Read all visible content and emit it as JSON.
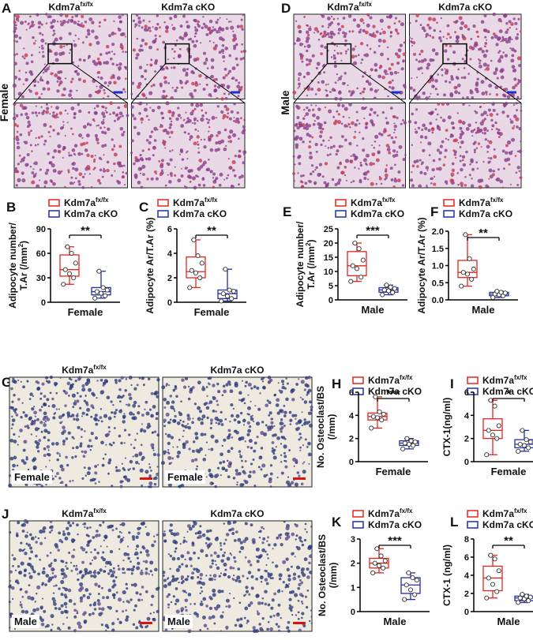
{
  "image_panels": [
    {
      "letter": "A",
      "columns": [
        {
          "name": "Kdm7a",
          "sup": "fx/fx"
        },
        {
          "name": "Kdm7a cKO"
        }
      ],
      "side_label": "Female"
    },
    {
      "letter": "D",
      "columns": [
        {
          "name": "Kdm7a",
          "sup": "fx/fx"
        },
        {
          "name": "Kdm7a cKO"
        }
      ],
      "side_label": "Male"
    },
    {
      "letter": "G",
      "columns": [
        {
          "name": "Kdm7a",
          "sup": "fx/fx"
        },
        {
          "name": "Kdm7a cKO"
        }
      ],
      "image_label": "Female"
    },
    {
      "letter": "J",
      "columns": [
        {
          "name": "Kdm7a",
          "sup": "fx/fx"
        },
        {
          "name": "Kdm7a cKO"
        }
      ],
      "image_label": "Male"
    }
  ],
  "chart_data": [
    {
      "type": "box",
      "letter": "B",
      "ylabel": [
        [
          "Adipocyte number/"
        ],
        [
          "T.Ar (/mm",
          {
            "sup": "2"
          },
          ")"
        ]
      ],
      "xlabel": "Female",
      "ylim": [
        0,
        90
      ],
      "yticks": [
        0,
        30,
        60,
        90
      ],
      "significance": "**",
      "series": [
        {
          "name": "Kdm7a",
          "name_sup": "fx/fx",
          "color": "#e8231f",
          "stats": {
            "min": 22,
            "q1": 32,
            "median": 40,
            "q3": 58,
            "max": 68
          },
          "points": [
            22,
            30,
            35,
            40,
            48,
            60,
            68
          ]
        },
        {
          "name": "Kdm7a cKO",
          "color": "#1f2fa8",
          "stats": {
            "min": 5,
            "q1": 9,
            "median": 13,
            "q3": 18,
            "max": 38
          },
          "points": [
            5,
            8,
            11,
            13,
            15,
            18,
            38
          ]
        }
      ]
    },
    {
      "type": "box",
      "letter": "C",
      "ylabel": [
        [
          "Adipocyte Ar/T.Ar (%)"
        ]
      ],
      "xlabel": "Female",
      "ylim": [
        0,
        6
      ],
      "yticks": [
        0,
        2,
        4,
        6
      ],
      "significance": "**",
      "series": [
        {
          "name": "Kdm7a",
          "name_sup": "fx/fx",
          "color": "#e8231f",
          "stats": {
            "min": 1.2,
            "q1": 2.0,
            "median": 2.5,
            "q3": 3.7,
            "max": 5.1
          },
          "points": [
            1.2,
            2.0,
            2.4,
            2.6,
            3.2,
            3.8,
            5.1
          ]
        },
        {
          "name": "Kdm7a cKO",
          "color": "#1f2fa8",
          "stats": {
            "min": 0.1,
            "q1": 0.3,
            "median": 0.7,
            "q3": 1.0,
            "max": 2.7
          },
          "points": [
            0.1,
            0.3,
            0.5,
            0.7,
            0.9,
            1.0,
            2.7
          ]
        }
      ]
    },
    {
      "type": "box",
      "letter": "E",
      "ylabel": [
        [
          "Adipocyte number/"
        ],
        [
          "T.Ar (/mm",
          {
            "sup": "2"
          },
          ")"
        ]
      ],
      "xlabel": "Male",
      "ylim": [
        0,
        25
      ],
      "yticks": [
        0,
        5,
        10,
        15,
        20,
        25
      ],
      "significance": "***",
      "series": [
        {
          "name": "Kdm7a",
          "name_sup": "fx/fx",
          "color": "#e8231f",
          "stats": {
            "min": 6.5,
            "q1": 8.5,
            "median": 12,
            "q3": 17,
            "max": 20
          },
          "points": [
            6.5,
            8,
            11,
            12,
            14,
            18,
            20
          ]
        },
        {
          "name": "Kdm7a cKO",
          "color": "#1f2fa8",
          "stats": {
            "min": 1.8,
            "q1": 2.7,
            "median": 3.5,
            "q3": 4.3,
            "max": 5.2
          },
          "points": [
            1.8,
            2.6,
            3.2,
            3.5,
            4.0,
            4.5,
            5.2
          ]
        }
      ]
    },
    {
      "type": "box",
      "letter": "F",
      "ylabel": [
        [
          "Adipocyte Ar/T.Ar (%)"
        ]
      ],
      "xlabel": "Male",
      "ylim": [
        0,
        2
      ],
      "yticks": [
        {
          "value": 0,
          "label": "0.0"
        },
        0.5,
        {
          "value": 1,
          "label": "1.0"
        },
        1.5,
        {
          "value": 2,
          "label": "2.0"
        }
      ],
      "significance": "**",
      "series": [
        {
          "name": "Kdm7a",
          "name_sup": "fx/fx",
          "color": "#e8231f",
          "stats": {
            "min": 0.4,
            "q1": 0.65,
            "median": 0.8,
            "q3": 1.15,
            "max": 1.9
          },
          "points": [
            0.4,
            0.6,
            0.75,
            0.8,
            0.9,
            1.2,
            1.9
          ]
        },
        {
          "name": "Kdm7a cKO",
          "color": "#1f2fa8",
          "stats": {
            "min": 0.07,
            "q1": 0.12,
            "median": 0.17,
            "q3": 0.22,
            "max": 0.25
          },
          "points": [
            0.07,
            0.12,
            0.15,
            0.17,
            0.2,
            0.22,
            0.25
          ]
        }
      ]
    },
    {
      "type": "box",
      "letter": "H",
      "ylabel": [
        [
          "No. Osteoclast/BS"
        ],
        [
          "(/mm)"
        ]
      ],
      "xlabel": "Female",
      "ylim": [
        0,
        6
      ],
      "yticks": [
        0,
        2,
        4,
        6
      ],
      "significance": "***",
      "series": [
        {
          "name": "Kdm7a",
          "name_sup": "fx/fx",
          "color": "#e8231f",
          "stats": {
            "min": 2.9,
            "q1": 3.6,
            "median": 3.9,
            "q3": 4.2,
            "max": 5.6
          },
          "points": [
            2.9,
            3.6,
            3.8,
            3.9,
            4.1,
            4.3,
            5.6
          ]
        },
        {
          "name": "Kdm7a cKO",
          "color": "#1f2fa8",
          "stats": {
            "min": 1.1,
            "q1": 1.4,
            "median": 1.6,
            "q3": 1.8,
            "max": 2.0
          },
          "points": [
            1.1,
            1.4,
            1.5,
            1.6,
            1.7,
            1.8,
            2.0
          ]
        }
      ]
    },
    {
      "type": "box",
      "letter": "I",
      "ylabel": [
        [
          "CTX-1(ng/ml)"
        ]
      ],
      "xlabel": "Female",
      "ylim": [
        0,
        6
      ],
      "yticks": [
        0,
        2,
        4,
        6
      ],
      "significance": "*",
      "series": [
        {
          "name": "Kdm7a",
          "name_sup": "fx/fx",
          "color": "#e8231f",
          "stats": {
            "min": 0.6,
            "q1": 2.0,
            "median": 2.7,
            "q3": 3.7,
            "max": 5.3
          },
          "points": [
            0.6,
            2.0,
            2.3,
            2.7,
            3.1,
            4.8,
            5.3
          ]
        },
        {
          "name": "Kdm7a cKO",
          "color": "#1f2fa8",
          "stats": {
            "min": 0.9,
            "q1": 1.2,
            "median": 1.5,
            "q3": 1.9,
            "max": 2.7
          },
          "points": [
            0.9,
            1.2,
            1.4,
            1.5,
            1.7,
            1.9,
            2.7
          ]
        }
      ]
    },
    {
      "type": "box",
      "letter": "K",
      "ylabel": [
        [
          "No. Osteoclast/BS"
        ],
        [
          "(/mm)"
        ]
      ],
      "xlabel": "Male",
      "ylim": [
        0,
        3
      ],
      "yticks": [
        0,
        1,
        2,
        3
      ],
      "significance": "***",
      "series": [
        {
          "name": "Kdm7a",
          "name_sup": "fx/fx",
          "color": "#e8231f",
          "stats": {
            "min": 1.6,
            "q1": 1.8,
            "median": 2.0,
            "q3": 2.2,
            "max": 2.6
          },
          "points": [
            1.6,
            1.8,
            1.9,
            2.0,
            2.1,
            2.3,
            2.6
          ]
        },
        {
          "name": "Kdm7a cKO",
          "color": "#1f2fa8",
          "stats": {
            "min": 0.5,
            "q1": 0.75,
            "median": 1.1,
            "q3": 1.4,
            "max": 1.6
          },
          "points": [
            0.5,
            0.7,
            0.9,
            1.1,
            1.3,
            1.4,
            1.6
          ]
        }
      ]
    },
    {
      "type": "box",
      "letter": "L",
      "ylabel": [
        [
          "CTX-1 (ng/ml)"
        ]
      ],
      "xlabel": "Male",
      "ylim": [
        0,
        8
      ],
      "yticks": [
        0,
        2,
        4,
        6,
        8
      ],
      "significance": "**",
      "series": [
        {
          "name": "Kdm7a",
          "name_sup": "fx/fx",
          "color": "#e8231f",
          "stats": {
            "min": 1.5,
            "q1": 2.3,
            "median": 3.7,
            "q3": 5.0,
            "max": 6.2
          },
          "points": [
            1.5,
            2.2,
            3.0,
            3.7,
            4.5,
            5.8,
            6.2
          ]
        },
        {
          "name": "Kdm7a cKO",
          "color": "#1f2fa8",
          "stats": {
            "min": 1.0,
            "q1": 1.2,
            "median": 1.5,
            "q3": 1.7,
            "max": 1.9
          },
          "points": [
            1.0,
            1.2,
            1.4,
            1.5,
            1.6,
            1.7,
            1.9
          ]
        }
      ]
    }
  ]
}
